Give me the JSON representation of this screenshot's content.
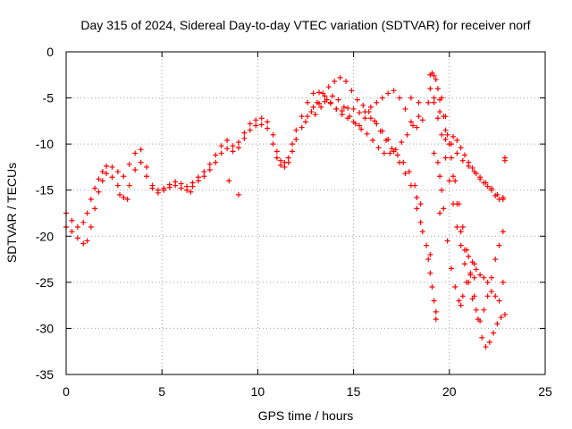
{
  "chart_data": {
    "type": "scatter",
    "title": "Day 315 of 2024, Sidereal Day-to-day VTEC variation (SDTVAR) for receiver norf",
    "xlabel": "GPS time / hours",
    "ylabel": "SDTVAR / TECUs",
    "xlim": [
      0,
      25
    ],
    "ylim": [
      -35,
      0
    ],
    "xticks": [
      0,
      5,
      10,
      15,
      20,
      25
    ],
    "yticks": [
      0,
      -5,
      -10,
      -15,
      -20,
      -25,
      -30,
      -35
    ],
    "xtick_labels": [
      "0",
      "5",
      "10",
      "15",
      "20",
      "25"
    ],
    "ytick_labels": [
      "0",
      "-5",
      "-10",
      "-15",
      "-20",
      "-25",
      "-30",
      "-35"
    ],
    "grid": true,
    "marker": "plus",
    "color": "#ff0000",
    "series": [
      {
        "x": [
          0.0,
          0.3,
          0.6,
          0.9,
          1.1,
          1.3,
          1.5,
          1.7,
          1.9,
          2.1,
          2.4,
          2.7,
          3.0,
          3.3,
          3.6,
          3.9,
          4.2,
          4.5,
          4.8,
          5.1,
          5.4,
          5.7,
          6.0,
          6.3,
          6.6,
          6.9,
          7.2,
          7.5,
          7.8,
          8.1,
          8.4,
          8.7,
          9.0,
          9.3,
          9.6,
          9.9,
          10.2,
          10.5,
          10.8,
          11.0,
          11.2,
          11.4,
          11.6,
          11.8,
          12.0,
          12.3,
          12.6,
          12.9,
          13.2,
          13.5,
          13.8,
          14.1,
          14.4,
          14.7,
          15.0,
          15.3,
          15.6,
          15.9,
          16.2,
          16.5,
          16.8,
          17.1,
          17.4,
          17.7,
          18.0,
          18.3,
          18.6,
          18.9,
          19.2,
          19.5,
          19.8,
          20.1,
          20.4,
          20.7,
          21.0,
          21.3,
          21.6,
          21.9,
          22.2,
          22.5,
          22.8
        ],
        "y": [
          -17.5,
          -18.3,
          -19.0,
          -18.5,
          -17.5,
          -16.0,
          -14.8,
          -13.8,
          -13.0,
          -12.4,
          -12.5,
          -13.0,
          -13.5,
          -12.2,
          -11.0,
          -10.6,
          -12.5,
          -14.5,
          -15.0,
          -14.8,
          -14.4,
          -14.1,
          -14.3,
          -14.6,
          -14.2,
          -13.6,
          -13.0,
          -12.2,
          -11.2,
          -10.2,
          -9.6,
          -10.2,
          -9.8,
          -8.8,
          -7.8,
          -7.4,
          -7.2,
          -7.6,
          -9.0,
          -10.8,
          -11.8,
          -12.0,
          -11.5,
          -10.0,
          -8.5,
          -7.0,
          -5.5,
          -4.5,
          -4.4,
          -4.8,
          -5.5,
          -6.2,
          -6.8,
          -7.2,
          -7.6,
          -8.0,
          -7.2,
          -6.0,
          -5.5,
          -5.0,
          -4.5,
          -4.2,
          -5.0,
          -6.2,
          -7.6,
          -8.2,
          -7.4,
          -5.5,
          -5.0,
          -6.5,
          -8.5,
          -10.0,
          -11.0,
          -11.8,
          -12.4,
          -13.0,
          -13.6,
          -14.2,
          -14.8,
          -15.5,
          -16.0
        ]
      },
      {
        "x": [
          0.0,
          0.3,
          0.6,
          0.9,
          1.1,
          1.3,
          1.5,
          1.7,
          1.9,
          2.1,
          2.4,
          2.7,
          3.0,
          3.3,
          3.6,
          3.9,
          4.2,
          4.5,
          4.8,
          5.1,
          5.4,
          5.7,
          6.0,
          6.3,
          6.6,
          6.9,
          7.2,
          7.5,
          7.8,
          8.1,
          8.4,
          8.7,
          9.0,
          9.3,
          9.6,
          9.9,
          10.2,
          10.5,
          10.8,
          11.0,
          11.2,
          11.4,
          11.6,
          11.8,
          12.0,
          12.3,
          12.6,
          12.9,
          13.2,
          13.5,
          13.8,
          14.1,
          14.4,
          14.7,
          15.0,
          15.3,
          15.6,
          15.9,
          16.2,
          16.5,
          16.8,
          17.1,
          17.4,
          17.7,
          18.0,
          18.3
        ],
        "y": [
          -19.0,
          -19.5,
          -20.2,
          -20.8,
          -20.5,
          -19.0,
          -17.0,
          -15.2,
          -14.0,
          -13.2,
          -13.6,
          -14.5,
          -15.8,
          -14.5,
          -12.8,
          -12.0,
          -13.5,
          -14.8,
          -15.3,
          -15.0,
          -14.7,
          -14.5,
          -14.8,
          -15.0,
          -14.6,
          -14.0,
          -13.5,
          -12.8,
          -12.0,
          -11.0,
          -10.5,
          -10.8,
          -10.4,
          -9.4,
          -8.5,
          -8.0,
          -7.9,
          -8.3,
          -10.0,
          -11.5,
          -12.3,
          -12.5,
          -12.0,
          -10.8,
          -9.5,
          -8.2,
          -7.0,
          -6.0,
          -5.6,
          -5.4,
          -5.6,
          -6.2,
          -6.4,
          -6.1,
          -6.2,
          -6.6,
          -6.5,
          -7.2,
          -7.8,
          -8.6,
          -9.5,
          -10.8,
          -12.0,
          -13.2,
          -14.5,
          -15.8
        ]
      },
      {
        "x": [
          12.5,
          12.8,
          13.1,
          13.4,
          13.7,
          14.0,
          14.3,
          14.6,
          14.9,
          15.2,
          15.5,
          15.8,
          16.1,
          16.4,
          16.7,
          17.0,
          17.3,
          17.6,
          17.9,
          18.2,
          18.5
        ],
        "y": [
          -7.6,
          -6.5,
          -5.5,
          -4.5,
          -3.8,
          -3.2,
          -2.8,
          -3.2,
          -4.2,
          -5.2,
          -5.8,
          -6.5,
          -7.5,
          -8.6,
          -9.6,
          -10.5,
          -11.2,
          -12.0,
          -13.0,
          -14.5,
          -16.5
        ]
      },
      {
        "x": [
          13.0,
          13.3,
          13.6,
          13.9,
          14.2,
          14.5,
          14.8,
          15.1,
          15.4,
          15.7,
          16.0,
          16.3,
          16.6,
          16.9,
          17.2,
          17.5,
          17.8,
          18.1,
          18.4
        ],
        "y": [
          -6.8,
          -6.0,
          -5.2,
          -4.8,
          -5.2,
          -6.0,
          -7.0,
          -7.8,
          -8.4,
          -8.9,
          -9.6,
          -10.4,
          -11.0,
          -11.0,
          -10.6,
          -9.8,
          -9.0,
          -8.0,
          -7.0
        ]
      },
      {
        "x": [
          19.0,
          19.1,
          19.2,
          19.3,
          19.4,
          19.5,
          19.7,
          19.9,
          20.1,
          20.3,
          20.5,
          20.7,
          20.9,
          21.1,
          21.3,
          21.5,
          21.7,
          21.9,
          22.1,
          22.3,
          22.5,
          22.7,
          22.9
        ],
        "y": [
          -2.5,
          -2.3,
          -2.6,
          -3.0,
          -4.0,
          -5.2,
          -7.0,
          -9.0,
          -11.5,
          -14.0,
          -16.5,
          -19.0,
          -21.5,
          -24.0,
          -26.5,
          -29.0,
          -31.0,
          -32.0,
          -31.5,
          -30.5,
          -29.5,
          -28.8,
          -28.5
        ]
      },
      {
        "x": [
          19.0,
          19.2,
          19.4,
          19.6,
          19.8,
          20.0,
          20.2,
          20.4,
          20.6,
          20.8,
          21.0,
          21.2,
          21.4,
          21.6,
          21.8,
          22.0,
          22.2,
          22.4,
          22.6,
          22.8
        ],
        "y": [
          -4.0,
          -5.5,
          -7.2,
          -9.0,
          -11.5,
          -14.0,
          -16.5,
          -19.0,
          -21.0,
          -23.0,
          -25.0,
          -26.8,
          -28.0,
          -29.2,
          -28.0,
          -26.5,
          -24.5,
          -22.5,
          -21.0,
          -19.5
        ]
      },
      {
        "x": [
          19.6,
          19.8,
          20.0,
          20.2,
          20.4,
          20.6,
          20.8,
          21.0,
          21.2,
          21.4,
          21.6,
          21.8,
          22.0,
          22.2,
          22.4,
          22.6,
          22.8
        ],
        "y": [
          -5.0,
          -7.0,
          -10.0,
          -13.5,
          -16.5,
          -19.5,
          -21.5,
          -22.2,
          -22.8,
          -23.6,
          -24.2,
          -24.5,
          -25.0,
          -26.0,
          -26.5,
          -27.0,
          -25.0
        ]
      },
      {
        "x": [
          19.8,
          20.0,
          20.2,
          20.4,
          20.6,
          20.8,
          21.0,
          21.2,
          21.4,
          21.6,
          21.8,
          22.0,
          22.2,
          22.4,
          22.6,
          22.8,
          22.9
        ],
        "y": [
          -9.5,
          -10.0,
          -9.2,
          -9.6,
          -10.4,
          -11.2,
          -12.0,
          -12.6,
          -13.2,
          -13.8,
          -14.2,
          -14.6,
          -15.0,
          -15.6,
          -16.0,
          -15.8,
          -11.5
        ]
      },
      {
        "x": [
          19.2,
          19.4,
          19.5,
          19.6,
          19.7,
          19.9,
          20.1,
          20.3,
          20.5,
          20.6,
          20.7,
          20.9,
          21.1,
          21.3
        ],
        "y": [
          -11.0,
          -12.0,
          -13.5,
          -15.0,
          -17.0,
          -20.5,
          -23.5,
          -25.5,
          -27.0,
          -27.5,
          -26.5,
          -25.0,
          -24.2,
          -24.5
        ]
      },
      {
        "x": [
          18.3,
          18.5,
          18.6,
          18.8,
          18.9,
          19.0,
          19.1,
          19.2,
          19.3,
          19.3
        ],
        "y": [
          -17.0,
          -18.5,
          -19.5,
          -21.0,
          -22.5,
          -24.0,
          -25.5,
          -27.0,
          -28.2,
          -29.0
        ]
      },
      {
        "x": [
          19.0,
          19.5,
          18.0,
          18.4,
          21.3,
          22.9,
          2.8,
          3.2,
          6.5,
          8.5,
          9.0
        ],
        "y": [
          -22.0,
          -17.5,
          -5.0,
          -5.5,
          -23.0,
          -11.8,
          -15.5,
          -16.0,
          -15.2,
          -14.0,
          -15.5
        ]
      }
    ]
  }
}
